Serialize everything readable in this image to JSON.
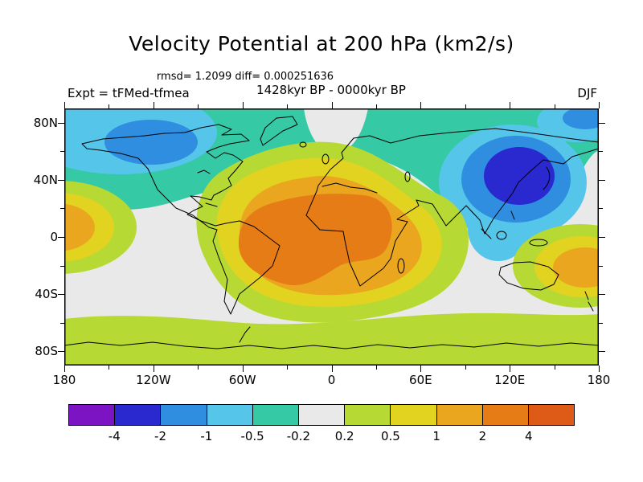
{
  "chart_data": {
    "type": "heatmap",
    "subtype": "filled_contour_global_map",
    "title": "Velocity Potential at 200 hPa (km2/s)",
    "stats_line": "rmsd= 1.2099 diff= 0.000251636",
    "period_line": "1428kyr BP - 0000kyr BP",
    "experiment_label": "Expt = tFMed-tfmea",
    "season_label": "DJF",
    "units": "km2/s",
    "projection": "equirectangular lat-lon, global",
    "axes": {
      "lat_range": [
        -90,
        90
      ],
      "lon_range": [
        -180,
        180
      ],
      "lat_ticks": [
        {
          "label": "80N",
          "value": 80
        },
        {
          "label": "",
          "value": 60
        },
        {
          "label": "40N",
          "value": 40
        },
        {
          "label": "",
          "value": 20
        },
        {
          "label": "0",
          "value": 0
        },
        {
          "label": "",
          "value": -20
        },
        {
          "label": "40S",
          "value": -40
        },
        {
          "label": "",
          "value": -60
        },
        {
          "label": "80S",
          "value": -80
        }
      ],
      "lon_ticks": [
        {
          "label": "180",
          "value": -180
        },
        {
          "label": "",
          "value": -150
        },
        {
          "label": "120W",
          "value": -120
        },
        {
          "label": "",
          "value": -90
        },
        {
          "label": "60W",
          "value": -60
        },
        {
          "label": "",
          "value": -30
        },
        {
          "label": "0",
          "value": 0
        },
        {
          "label": "",
          "value": 30
        },
        {
          "label": "60E",
          "value": 60
        },
        {
          "label": "",
          "value": 90
        },
        {
          "label": "120E",
          "value": 120
        },
        {
          "label": "",
          "value": 150
        },
        {
          "label": "180",
          "value": 180
        }
      ]
    },
    "colorbar": {
      "levels": [
        -4,
        -2,
        -1,
        -0.5,
        -0.2,
        0.2,
        0.5,
        1,
        2,
        4
      ],
      "colors": [
        "#7d14c3",
        "#2929cf",
        "#2f8ee0",
        "#56c5ea",
        "#35c9a5",
        "#e9e9e9",
        "#b6d934",
        "#e3d321",
        "#e9a61e",
        "#e67c15",
        "#de5a17"
      ]
    },
    "features": [
      {
        "description": "Large positive anomaly center (2 to 4 km2/s) over South America, tropical Atlantic and Africa",
        "approx_value": 4
      },
      {
        "description": "Secondary positive center (1 to 2 km2/s) near the date line / east of Australia around the equator",
        "approx_value": 2
      },
      {
        "description": "Strong negative center (-2 to -4 km2/s) over East Asia and the northwest Pacific",
        "approx_value": -4
      },
      {
        "description": "Negative region (-1 to -2 km2/s) over northern North America and the Arctic",
        "approx_value": -2
      },
      {
        "description": "Weak positive band (0.2 to 0.5 km2/s) over the Southern Ocean",
        "approx_value": 0.5
      }
    ]
  }
}
